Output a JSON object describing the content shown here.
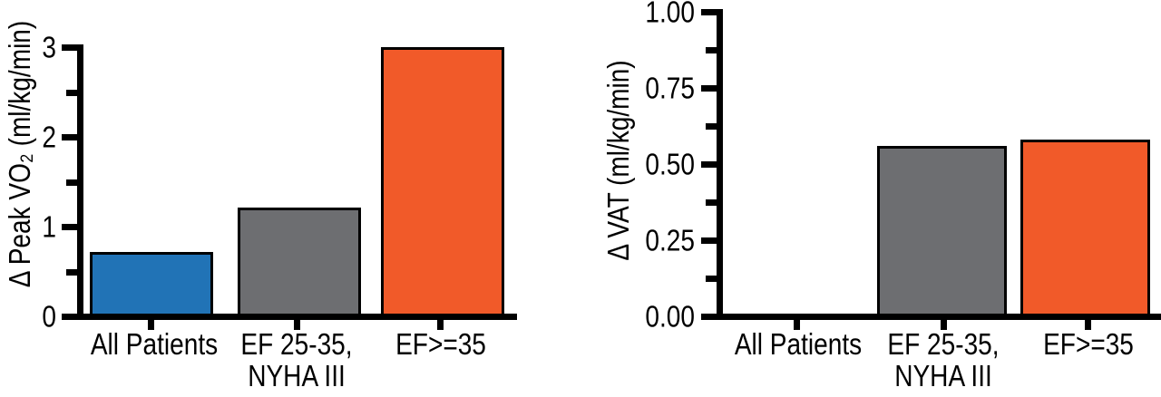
{
  "figure": {
    "background": "#ffffff",
    "axis_color": "#000000",
    "text_color": "#000000"
  },
  "chart_data": [
    {
      "type": "bar",
      "title": "",
      "ylabel": "Δ Peak VO₂ (ml/kg/min)",
      "xlabel": "",
      "categories": [
        "All Patients",
        "EF 25-35,\nNYHA III",
        "EF>=35"
      ],
      "values": [
        0.72,
        1.21,
        3.0
      ],
      "bar_colors": [
        "#2173B6",
        "#6D6E71",
        "#F15A29"
      ],
      "ylim": [
        0,
        3
      ],
      "ytick_values": [
        0,
        1,
        2,
        3
      ],
      "ytick_labels": [
        "0",
        "1",
        "2",
        "3"
      ],
      "yminor_values": [
        0.5,
        1.5,
        2.5
      ],
      "grid": false,
      "legend": null
    },
    {
      "type": "bar",
      "title": "",
      "ylabel": "Δ VAT (ml/kg/min)",
      "xlabel": "",
      "categories": [
        "All Patients",
        "EF 25-35,\nNYHA III",
        "EF>=35"
      ],
      "values": [
        0,
        0.56,
        0.58
      ],
      "bar_colors": [
        "#2173B6",
        "#6D6E71",
        "#F15A29"
      ],
      "ylim": [
        0,
        1
      ],
      "ytick_values": [
        0,
        0.25,
        0.5,
        0.75,
        1
      ],
      "ytick_labels": [
        "0.00",
        "0.25",
        "0.50",
        "0.75",
        "1.00"
      ],
      "yminor_values": [
        0.125,
        0.375,
        0.625,
        0.875
      ],
      "grid": false,
      "legend": null
    }
  ]
}
